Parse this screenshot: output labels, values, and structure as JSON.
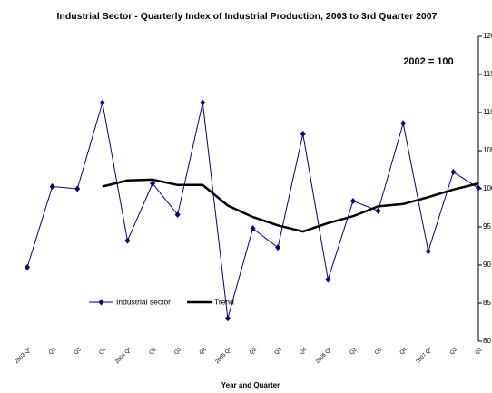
{
  "chart_data": {
    "type": "line",
    "title": "Industrial Sector - Quarterly Index of Industrial Production, 2003 to 3rd Quarter 2007",
    "annotation": "2002 = 100",
    "x_label": "Year and Quarter",
    "categories": [
      "2003 Q*",
      "Q2",
      "Q3",
      "Q4",
      "2004 Q*",
      "Q2",
      "Q3",
      "Q4",
      "2005 Q*",
      "Q2",
      "Q3",
      "Q4",
      "2006 Q*",
      "Q2",
      "Q3",
      "Q4",
      "2007 Q*",
      "Q2",
      "Q3"
    ],
    "series": [
      {
        "name": "Industrial sector",
        "color": "#000080",
        "marker": "diamond",
        "values": [
          89.7,
          100.3,
          100.0,
          111.3,
          93.2,
          100.7,
          96.6,
          111.3,
          83.0,
          94.8,
          92.3,
          107.2,
          88.1,
          98.4,
          97.1,
          108.6,
          91.8,
          102.2,
          100.1
        ]
      },
      {
        "name": "Trend",
        "color": "#000000",
        "marker": "none",
        "values": [
          null,
          null,
          null,
          100.3,
          101.1,
          101.2,
          100.5,
          100.5,
          97.8,
          96.3,
          95.2,
          94.4,
          95.5,
          96.4,
          97.7,
          98.0,
          98.9,
          99.9,
          100.7
        ]
      }
    ],
    "ylim": [
      80,
      120
    ],
    "yticks": [
      80,
      85,
      90,
      95,
      100,
      105,
      110,
      115,
      120
    ],
    "y_axis_side": "right",
    "grid": false,
    "legend_position": "lower-left"
  }
}
